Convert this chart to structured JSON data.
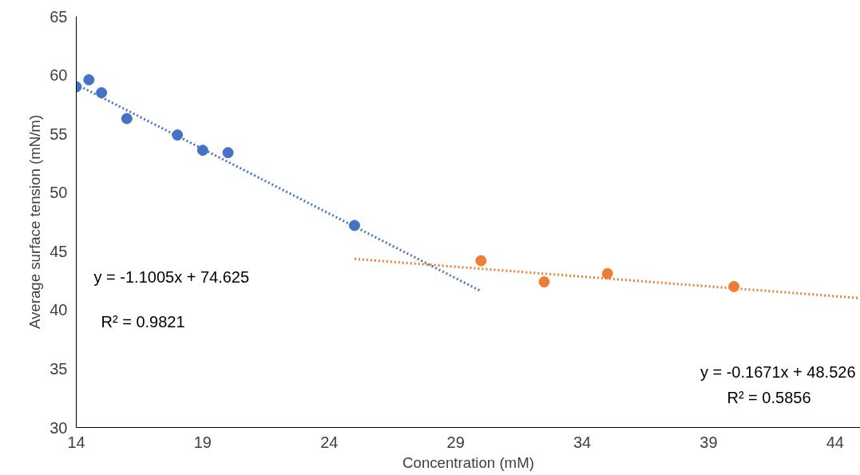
{
  "chart_data": {
    "type": "scatter",
    "xlabel": "Concentration (mM)",
    "ylabel": "Average surface tension (mN/m)",
    "xlim": [
      14,
      45
    ],
    "ylim": [
      30,
      65
    ],
    "xticks": [
      14,
      19,
      24,
      29,
      34,
      39,
      44
    ],
    "yticks": [
      30,
      35,
      40,
      45,
      50,
      55,
      60,
      65
    ],
    "grid": false,
    "marker": "circle",
    "series": [
      {
        "color": "#4472c4",
        "x": [
          14.0,
          14.5,
          15.0,
          16.0,
          18.0,
          19.0,
          20.0,
          25.0
        ],
        "values": [
          59.0,
          59.6,
          58.5,
          56.3,
          54.9,
          53.6,
          53.4,
          47.2
        ]
      },
      {
        "color": "#ed7d31",
        "x": [
          30.0,
          32.5,
          35.0,
          40.0
        ],
        "values": [
          44.2,
          42.4,
          43.1,
          42.0
        ]
      },
      {
        "type": "line",
        "color": "#4472c4",
        "line_style": "dotted",
        "marker": "none",
        "x": [
          14,
          30
        ],
        "values": [
          59.21,
          41.61
        ]
      },
      {
        "type": "line",
        "color": "#ed7d31",
        "line_style": "dotted",
        "marker": "none",
        "x": [
          25,
          45
        ],
        "values": [
          44.35,
          41.01
        ]
      }
    ],
    "annotations": [
      "y = -1.1005x + 74.625",
      "R² = 0.9821",
      "y = -0.1671x + 48.526",
      "R² = 0.5856"
    ]
  }
}
